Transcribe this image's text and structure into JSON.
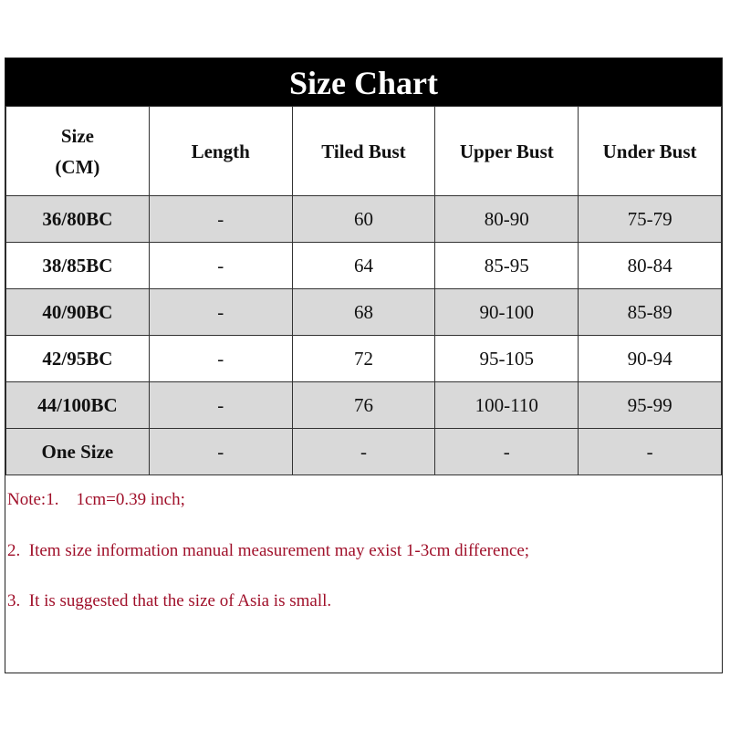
{
  "title": "Size Chart",
  "headers": [
    "Size\n(CM)",
    "Length",
    "Tiled Bust",
    "Upper Bust",
    "Under Bust"
  ],
  "header_size_line1": "Size",
  "header_size_line2": "(CM)",
  "rows": [
    {
      "size": "36/80BC",
      "length": "-",
      "tiled_bust": "60",
      "upper_bust": "80-90",
      "under_bust": "75-79",
      "shaded": true
    },
    {
      "size": "38/85BC",
      "length": "-",
      "tiled_bust": "64",
      "upper_bust": "85-95",
      "under_bust": "80-84",
      "shaded": false
    },
    {
      "size": "40/90BC",
      "length": "-",
      "tiled_bust": "68",
      "upper_bust": "90-100",
      "under_bust": "85-89",
      "shaded": true
    },
    {
      "size": "42/95BC",
      "length": "-",
      "tiled_bust": "72",
      "upper_bust": "95-105",
      "under_bust": "90-94",
      "shaded": false
    },
    {
      "size": "44/100BC",
      "length": "-",
      "tiled_bust": "76",
      "upper_bust": "100-110",
      "under_bust": "95-99",
      "shaded": true
    },
    {
      "size": "One Size",
      "length": "-",
      "tiled_bust": "-",
      "upper_bust": "-",
      "under_bust": "-",
      "shaded": true
    }
  ],
  "notes": [
    "Note:1.    1cm=0.39 inch;",
    "2.  Item size information manual measurement may exist 1-3cm difference;",
    "3.  It is suggested that the size of Asia is small."
  ],
  "colors": {
    "title_bg": "#000000",
    "shaded_row": "#d9d9d9",
    "note_text": "#a0102a"
  }
}
